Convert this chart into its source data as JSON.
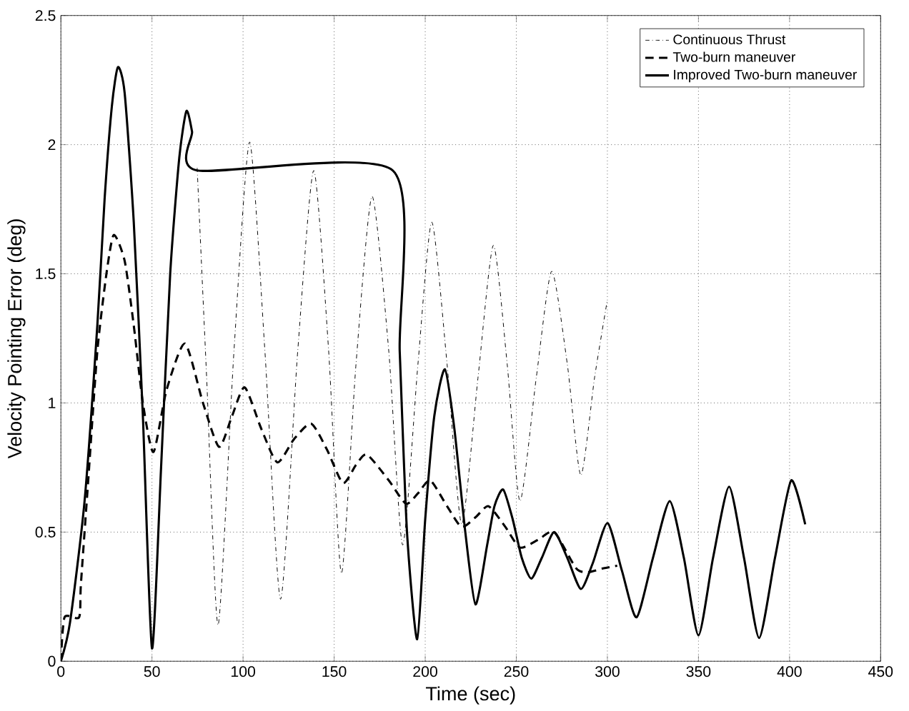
{
  "chart_data": {
    "type": "line",
    "xlabel": "Time (sec)",
    "ylabel": "Velocity Pointing Error (deg)",
    "xlim": [
      0,
      450
    ],
    "ylim": [
      0,
      2.5
    ],
    "xticks": [
      0,
      50,
      100,
      150,
      200,
      250,
      300,
      350,
      400,
      450
    ],
    "yticks": [
      0,
      0.5,
      1,
      1.5,
      2,
      2.5
    ],
    "grid": true,
    "legend": "top right",
    "series": [
      {
        "name": "Continuous Thrust",
        "color": "#000000",
        "line_style": "dashdot",
        "x": [
          74.8,
          80,
          86.3,
          95,
          103.6,
          112,
          120.6,
          130,
          138.8,
          147,
          154,
          162,
          170.8,
          180,
          187.6,
          196,
          203.6,
          212,
          220,
          229,
          237.4,
          245,
          252,
          261,
          269.4,
          278,
          285.4,
          293,
          300
        ],
        "values": [
          1.91,
          1.1,
          0.14,
          1.2,
          2.01,
          1.2,
          0.24,
          1.2,
          1.9,
          1.2,
          0.34,
          1.15,
          1.8,
          1.2,
          0.45,
          1.15,
          1.7,
          1.15,
          0.53,
          1.1,
          1.61,
          1.15,
          0.62,
          1.1,
          1.51,
          1.15,
          0.72,
          1.1,
          1.4
        ]
      },
      {
        "name": "Two-burn maneuver",
        "color": "#000000",
        "line_style": "dashed",
        "x": [
          0,
          2,
          10,
          11,
          15,
          20,
          25,
          29,
          35,
          40,
          45,
          50.8,
          58,
          68.1,
          78,
          86.8,
          94,
          100.9,
          110,
          118.8,
          128,
          137.4,
          146,
          154.8,
          162,
          168,
          180,
          189.4,
          196,
          202.8,
          212,
          220,
          228,
          234.8,
          244,
          252,
          262,
          270.8,
          282.8,
          289.4,
          298,
          305.4
        ],
        "values": [
          0,
          0.17,
          0.17,
          0.3,
          0.7,
          1.2,
          1.5,
          1.65,
          1.55,
          1.3,
          1.0,
          0.81,
          1.05,
          1.23,
          1.0,
          0.83,
          0.95,
          1.06,
          0.9,
          0.77,
          0.86,
          0.92,
          0.82,
          0.69,
          0.76,
          0.8,
          0.7,
          0.61,
          0.65,
          0.7,
          0.6,
          0.52,
          0.56,
          0.6,
          0.52,
          0.44,
          0.47,
          0.5,
          0.36,
          0.345,
          0.36,
          0.37
        ]
      },
      {
        "name": "Improved Two-burn maneuver",
        "color": "#000000",
        "line_style": "solid",
        "x": [
          0,
          5,
          13,
          20,
          24,
          28,
          31.3,
          35,
          40,
          45,
          50,
          55,
          60,
          65,
          68.9,
          72,
          74.8,
          182.2,
          186,
          190,
          195.6,
          200,
          205,
          210.8,
          216,
          222,
          227.6,
          234,
          238,
          242.8,
          248,
          253,
          258.2,
          264,
          270.8,
          278,
          285.4,
          292,
          300.1,
          308,
          316,
          325,
          334.2,
          342,
          350,
          358,
          366.8,
          375,
          383.3,
          392,
          400.9,
          408.6
        ],
        "values": [
          0,
          0.15,
          0.62,
          1.3,
          1.79,
          2.15,
          2.3,
          2.2,
          1.7,
          0.95,
          0.05,
          0.75,
          1.5,
          1.95,
          2.13,
          2.05,
          1.9,
          1.9,
          1.2,
          0.5,
          0.085,
          0.55,
          0.95,
          1.13,
          0.9,
          0.5,
          0.22,
          0.45,
          0.6,
          0.665,
          0.55,
          0.4,
          0.32,
          0.4,
          0.5,
          0.4,
          0.28,
          0.38,
          0.535,
          0.35,
          0.17,
          0.4,
          0.62,
          0.4,
          0.1,
          0.4,
          0.676,
          0.4,
          0.09,
          0.4,
          0.7,
          0.53
        ]
      }
    ]
  }
}
